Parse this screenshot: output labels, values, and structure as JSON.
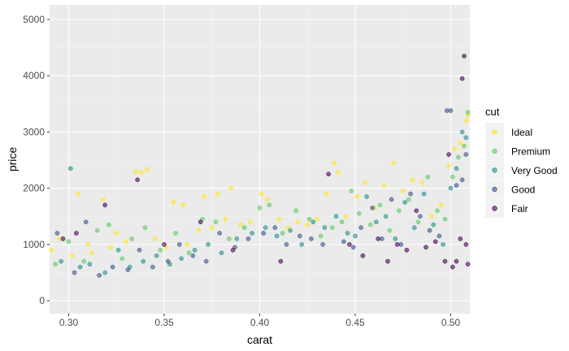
{
  "chart_data": {
    "type": "scatter",
    "xlabel": "carat",
    "ylabel": "price",
    "xlim": [
      0.29,
      0.51
    ],
    "ylim": [
      -230,
      5260
    ],
    "x_ticks": [
      0.3,
      0.35,
      0.4,
      0.45,
      0.5
    ],
    "x_tick_labels": [
      "0.30",
      "0.35",
      "0.40",
      "0.45",
      "0.50"
    ],
    "y_ticks": [
      0,
      1000,
      2000,
      3000,
      4000,
      5000
    ],
    "y_tick_labels": [
      "0",
      "1000",
      "2000",
      "3000",
      "4000",
      "5000"
    ],
    "grid": true,
    "background": "#ebebeb",
    "point_alpha": 0.6,
    "legend": {
      "title": "cut",
      "position": "right",
      "entries": [
        {
          "name": "Ideal",
          "color": "#fde725"
        },
        {
          "name": "Premium",
          "color": "#5ec962"
        },
        {
          "name": "Very Good",
          "color": "#21918c"
        },
        {
          "name": "Good",
          "color": "#3b528b"
        },
        {
          "name": "Fair",
          "color": "#440154"
        }
      ]
    },
    "series": [
      {
        "name": "Ideal",
        "color": "#fde725",
        "points": [
          [
            0.291,
            900
          ],
          [
            0.295,
            1100
          ],
          [
            0.302,
            800
          ],
          [
            0.305,
            1900
          ],
          [
            0.31,
            1000
          ],
          [
            0.312,
            850
          ],
          [
            0.318,
            1800
          ],
          [
            0.322,
            950
          ],
          [
            0.325,
            1200
          ],
          [
            0.33,
            1050
          ],
          [
            0.335,
            2300
          ],
          [
            0.338,
            2280
          ],
          [
            0.341,
            2330
          ],
          [
            0.345,
            1100
          ],
          [
            0.351,
            950
          ],
          [
            0.355,
            1750
          ],
          [
            0.36,
            1700
          ],
          [
            0.362,
            1000
          ],
          [
            0.368,
            1250
          ],
          [
            0.371,
            1850
          ],
          [
            0.375,
            1300
          ],
          [
            0.378,
            1900
          ],
          [
            0.382,
            1450
          ],
          [
            0.385,
            2000
          ],
          [
            0.39,
            1350
          ],
          [
            0.395,
            1400
          ],
          [
            0.401,
            1900
          ],
          [
            0.404,
            1800
          ],
          [
            0.41,
            1450
          ],
          [
            0.415,
            1300
          ],
          [
            0.42,
            1400
          ],
          [
            0.425,
            1350
          ],
          [
            0.43,
            1450
          ],
          [
            0.435,
            1900
          ],
          [
            0.439,
            2450
          ],
          [
            0.441,
            2280
          ],
          [
            0.445,
            1500
          ],
          [
            0.451,
            1850
          ],
          [
            0.455,
            2100
          ],
          [
            0.46,
            1650
          ],
          [
            0.465,
            2050
          ],
          [
            0.47,
            2450
          ],
          [
            0.475,
            1950
          ],
          [
            0.48,
            2150
          ],
          [
            0.485,
            2100
          ],
          [
            0.49,
            1500
          ],
          [
            0.495,
            1700
          ],
          [
            0.499,
            2400
          ],
          [
            0.502,
            2700
          ],
          [
            0.505,
            2800
          ],
          [
            0.508,
            3200
          ],
          [
            0.509,
            3300
          ]
        ]
      },
      {
        "name": "Premium",
        "color": "#5ec962",
        "points": [
          [
            0.293,
            650
          ],
          [
            0.3,
            1050
          ],
          [
            0.308,
            700
          ],
          [
            0.315,
            1250
          ],
          [
            0.321,
            1350
          ],
          [
            0.328,
            750
          ],
          [
            0.333,
            1100
          ],
          [
            0.34,
            1300
          ],
          [
            0.348,
            900
          ],
          [
            0.356,
            1200
          ],
          [
            0.363,
            850
          ],
          [
            0.37,
            1450
          ],
          [
            0.377,
            1400
          ],
          [
            0.384,
            1100
          ],
          [
            0.392,
            1300
          ],
          [
            0.4,
            1650
          ],
          [
            0.405,
            1700
          ],
          [
            0.412,
            1200
          ],
          [
            0.419,
            1600
          ],
          [
            0.426,
            1450
          ],
          [
            0.432,
            1150
          ],
          [
            0.438,
            1300
          ],
          [
            0.443,
            1400
          ],
          [
            0.448,
            1950
          ],
          [
            0.452,
            1550
          ],
          [
            0.458,
            1350
          ],
          [
            0.463,
            1700
          ],
          [
            0.468,
            1250
          ],
          [
            0.473,
            1600
          ],
          [
            0.478,
            1800
          ],
          [
            0.483,
            1400
          ],
          [
            0.488,
            2200
          ],
          [
            0.493,
            1600
          ],
          [
            0.497,
            1450
          ],
          [
            0.501,
            2200
          ],
          [
            0.504,
            2550
          ],
          [
            0.507,
            2750
          ],
          [
            0.509,
            3350
          ]
        ]
      },
      {
        "name": "Very Good",
        "color": "#21918c",
        "points": [
          [
            0.296,
            700
          ],
          [
            0.301,
            2350
          ],
          [
            0.306,
            600
          ],
          [
            0.311,
            650
          ],
          [
            0.319,
            500
          ],
          [
            0.326,
            900
          ],
          [
            0.332,
            600
          ],
          [
            0.339,
            700
          ],
          [
            0.346,
            800
          ],
          [
            0.353,
            650
          ],
          [
            0.359,
            750
          ],
          [
            0.366,
            900
          ],
          [
            0.373,
            1000
          ],
          [
            0.38,
            850
          ],
          [
            0.388,
            1100
          ],
          [
            0.396,
            1200
          ],
          [
            0.403,
            1300
          ],
          [
            0.409,
            1150
          ],
          [
            0.416,
            1250
          ],
          [
            0.422,
            1000
          ],
          [
            0.428,
            1400
          ],
          [
            0.434,
            1300
          ],
          [
            0.44,
            1500
          ],
          [
            0.446,
            1200
          ],
          [
            0.45,
            1150
          ],
          [
            0.456,
            1850
          ],
          [
            0.461,
            1400
          ],
          [
            0.466,
            1500
          ],
          [
            0.471,
            1100
          ],
          [
            0.476,
            1750
          ],
          [
            0.481,
            1300
          ],
          [
            0.486,
            1900
          ],
          [
            0.491,
            1350
          ],
          [
            0.496,
            1000
          ],
          [
            0.5,
            2000
          ],
          [
            0.503,
            2350
          ],
          [
            0.506,
            3000
          ],
          [
            0.508,
            2900
          ]
        ]
      },
      {
        "name": "Good",
        "color": "#3b528b",
        "points": [
          [
            0.294,
            1200
          ],
          [
            0.303,
            500
          ],
          [
            0.309,
            1400
          ],
          [
            0.316,
            450
          ],
          [
            0.323,
            600
          ],
          [
            0.331,
            550
          ],
          [
            0.337,
            900
          ],
          [
            0.344,
            600
          ],
          [
            0.352,
            700
          ],
          [
            0.358,
            1000
          ],
          [
            0.365,
            800
          ],
          [
            0.372,
            700
          ],
          [
            0.379,
            1200
          ],
          [
            0.387,
            950
          ],
          [
            0.394,
            1100
          ],
          [
            0.402,
            1200
          ],
          [
            0.408,
            1300
          ],
          [
            0.414,
            1000
          ],
          [
            0.421,
            1150
          ],
          [
            0.427,
            1100
          ],
          [
            0.433,
            1000
          ],
          [
            0.444,
            1050
          ],
          [
            0.449,
            950
          ],
          [
            0.453,
            1300
          ],
          [
            0.459,
            1650
          ],
          [
            0.464,
            1100
          ],
          [
            0.469,
            1800
          ],
          [
            0.474,
            1000
          ],
          [
            0.479,
            1900
          ],
          [
            0.484,
            1500
          ],
          [
            0.489,
            1250
          ],
          [
            0.494,
            1150
          ],
          [
            0.498,
            3380
          ],
          [
            0.5,
            3380
          ],
          [
            0.503,
            2050
          ],
          [
            0.506,
            2150
          ],
          [
            0.508,
            2600
          ]
        ]
      },
      {
        "name": "Fair",
        "color": "#440154",
        "points": [
          [
            0.297,
            1100
          ],
          [
            0.304,
            1200
          ],
          [
            0.319,
            1700
          ],
          [
            0.336,
            2150
          ],
          [
            0.35,
            1000
          ],
          [
            0.369,
            1400
          ],
          [
            0.386,
            900
          ],
          [
            0.411,
            700
          ],
          [
            0.436,
            2250
          ],
          [
            0.447,
            1000
          ],
          [
            0.454,
            800
          ],
          [
            0.462,
            1100
          ],
          [
            0.467,
            700
          ],
          [
            0.472,
            1000
          ],
          [
            0.477,
            900
          ],
          [
            0.482,
            1600
          ],
          [
            0.487,
            950
          ],
          [
            0.492,
            1050
          ],
          [
            0.497,
            700
          ],
          [
            0.499,
            2600
          ],
          [
            0.501,
            600
          ],
          [
            0.503,
            700
          ],
          [
            0.505,
            1100
          ],
          [
            0.506,
            3950
          ],
          [
            0.507,
            4350
          ],
          [
            0.508,
            1000
          ],
          [
            0.509,
            650
          ]
        ]
      }
    ]
  }
}
